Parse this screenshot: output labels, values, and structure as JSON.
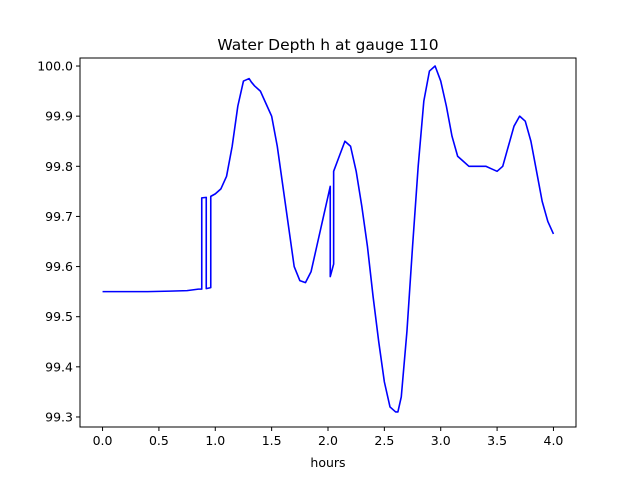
{
  "chart_data": {
    "type": "line",
    "title": "Water Depth h at gauge 110",
    "xlabel": "hours",
    "ylabel": "",
    "xlim": [
      -0.2,
      4.2
    ],
    "ylim": [
      99.28,
      100.016
    ],
    "xticks": [
      0.0,
      0.5,
      1.0,
      1.5,
      2.0,
      2.5,
      3.0,
      3.5,
      4.0
    ],
    "xtick_labels": [
      "0.0",
      "0.5",
      "1.0",
      "1.5",
      "2.0",
      "2.5",
      "3.0",
      "3.5",
      "4.0"
    ],
    "yticks": [
      99.3,
      99.4,
      99.5,
      99.6,
      99.7,
      99.8,
      99.9,
      100.0
    ],
    "ytick_labels": [
      "99.3",
      "99.4",
      "99.5",
      "99.6",
      "99.7",
      "99.8",
      "99.9",
      "100.0"
    ],
    "grid": false,
    "legend": false,
    "series": [
      {
        "color": "#0000ff",
        "x": [
          0.0,
          0.2,
          0.4,
          0.6,
          0.75,
          0.85,
          0.88,
          0.88,
          0.92,
          0.92,
          0.96,
          0.96,
          1.0,
          1.05,
          1.1,
          1.15,
          1.2,
          1.25,
          1.3,
          1.32,
          1.35,
          1.4,
          1.45,
          1.5,
          1.55,
          1.6,
          1.65,
          1.7,
          1.75,
          1.8,
          1.85,
          1.9,
          1.95,
          2.0,
          2.02,
          2.02,
          2.05,
          2.05,
          2.1,
          2.15,
          2.2,
          2.25,
          2.3,
          2.35,
          2.4,
          2.45,
          2.5,
          2.55,
          2.6,
          2.62,
          2.65,
          2.7,
          2.75,
          2.8,
          2.85,
          2.9,
          2.95,
          3.0,
          3.05,
          3.1,
          3.15,
          3.2,
          3.25,
          3.3,
          3.35,
          3.4,
          3.45,
          3.5,
          3.55,
          3.6,
          3.65,
          3.7,
          3.75,
          3.8,
          3.85,
          3.9,
          3.95,
          4.0
        ],
        "y": [
          99.55,
          99.55,
          99.55,
          99.551,
          99.552,
          99.555,
          99.555,
          99.737,
          99.738,
          99.556,
          99.558,
          99.74,
          99.745,
          99.755,
          99.78,
          99.84,
          99.92,
          99.97,
          99.975,
          99.968,
          99.96,
          99.95,
          99.925,
          99.9,
          99.84,
          99.76,
          99.68,
          99.6,
          99.572,
          99.568,
          99.59,
          99.64,
          99.69,
          99.74,
          99.76,
          99.58,
          99.605,
          99.79,
          99.82,
          99.85,
          99.84,
          99.79,
          99.72,
          99.64,
          99.54,
          99.45,
          99.37,
          99.32,
          99.31,
          99.31,
          99.34,
          99.47,
          99.64,
          99.8,
          99.93,
          99.99,
          100.0,
          99.97,
          99.92,
          99.86,
          99.82,
          99.81,
          99.8,
          99.8,
          99.8,
          99.8,
          99.795,
          99.79,
          99.8,
          99.84,
          99.88,
          99.9,
          99.89,
          99.85,
          99.79,
          99.73,
          99.69,
          99.665
        ]
      }
    ]
  }
}
